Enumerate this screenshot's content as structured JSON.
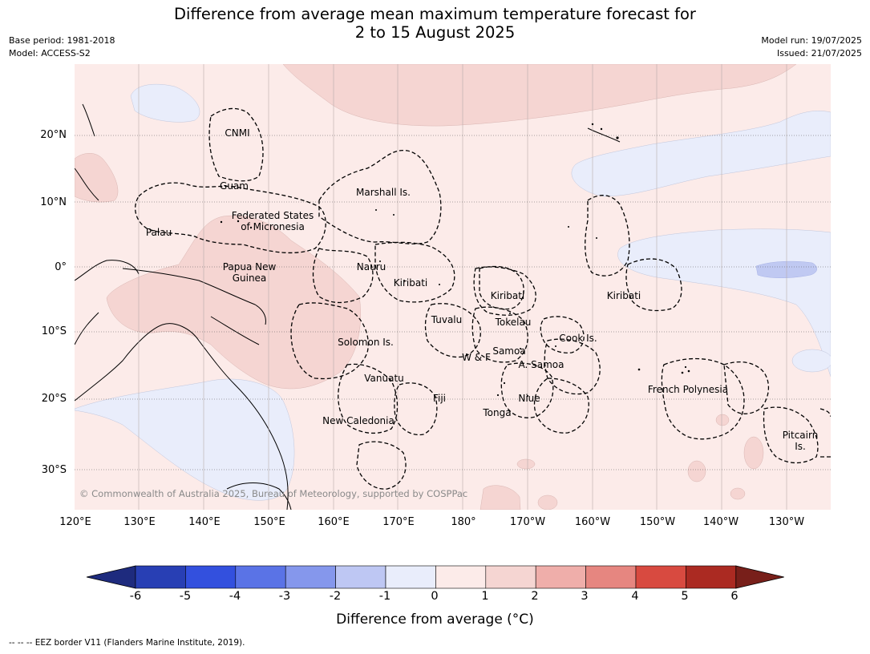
{
  "title": "Difference from average mean maximum temperature forecast for\n2 to 15 August 2025",
  "meta_left": {
    "base_period": "Base period: 1981-2018",
    "model": "Model: ACCESS-S2"
  },
  "meta_right": {
    "model_run": "Model run: 19/07/2025",
    "issued": "Issued: 21/07/2025"
  },
  "map": {
    "lat_labels": [
      "20°N",
      "10°N",
      "0°",
      "10°S",
      "20°S",
      "30°S"
    ],
    "lon_labels": [
      "120°E",
      "130°E",
      "140°E",
      "150°E",
      "160°E",
      "170°E",
      "180°",
      "170°W",
      "160°W",
      "150°W",
      "140°W",
      "130°W"
    ],
    "regions": [
      {
        "name": "CNMI",
        "label": "CNMI"
      },
      {
        "name": "guam",
        "label": "Guam"
      },
      {
        "name": "marshall",
        "label": "Marshall Is."
      },
      {
        "name": "palau",
        "label": "Palau"
      },
      {
        "name": "fsm",
        "label": "Federated States\nof Micronesia"
      },
      {
        "name": "png",
        "label": "Papua New\nGuinea"
      },
      {
        "name": "nauru",
        "label": "Nauru"
      },
      {
        "name": "kiribati-west",
        "label": "Kiribati"
      },
      {
        "name": "kiribati-central",
        "label": "Kiribati"
      },
      {
        "name": "kiribati-east",
        "label": "Kiribati"
      },
      {
        "name": "tuvalu",
        "label": "Tuvalu"
      },
      {
        "name": "tokelau",
        "label": "Tokelau"
      },
      {
        "name": "solomon",
        "label": "Solomon Is."
      },
      {
        "name": "cook",
        "label": "Cook Is."
      },
      {
        "name": "samoa",
        "label": "Samoa"
      },
      {
        "name": "wf",
        "label": "W & F"
      },
      {
        "name": "asamoa",
        "label": "A. Samoa"
      },
      {
        "name": "vanuatu",
        "label": "Vanuatu"
      },
      {
        "name": "fiji",
        "label": "Fiji"
      },
      {
        "name": "niue",
        "label": "Niue"
      },
      {
        "name": "tonga",
        "label": "Tonga"
      },
      {
        "name": "french-polynesia",
        "label": "French Polynesia"
      },
      {
        "name": "new-caledonia",
        "label": "New Caledonia"
      },
      {
        "name": "pitcairn",
        "label": "Pitcairn\nIs."
      }
    ],
    "copyright": "© Commonwealth of Australia 2025, Bureau of Meteorology, supported by COSPPac",
    "colors": {
      "anom_0_1": "#fcebe9",
      "anom_1_2": "#f5d5d2",
      "anom_m1_0": "#e9edfb",
      "anom_m2_m1": "#c0c9f2"
    }
  },
  "colorbar": {
    "ticks": [
      "-6",
      "-5",
      "-4",
      "-3",
      "-2",
      "-1",
      "0",
      "1",
      "2",
      "3",
      "4",
      "5",
      "6"
    ],
    "colors": [
      "#1e2b7e",
      "#283fb4",
      "#3350de",
      "#5a73e6",
      "#8597ec",
      "#bec7f3",
      "#e9edfb",
      "#fcebe9",
      "#f5d5d2",
      "#efaeaa",
      "#e68680",
      "#d84a40",
      "#ab2a22",
      "#781f1a"
    ],
    "label": "Difference from average (°C)"
  },
  "footer": "--  --  -- EEZ border V11 (Flanders Marine Institute, 2019)."
}
